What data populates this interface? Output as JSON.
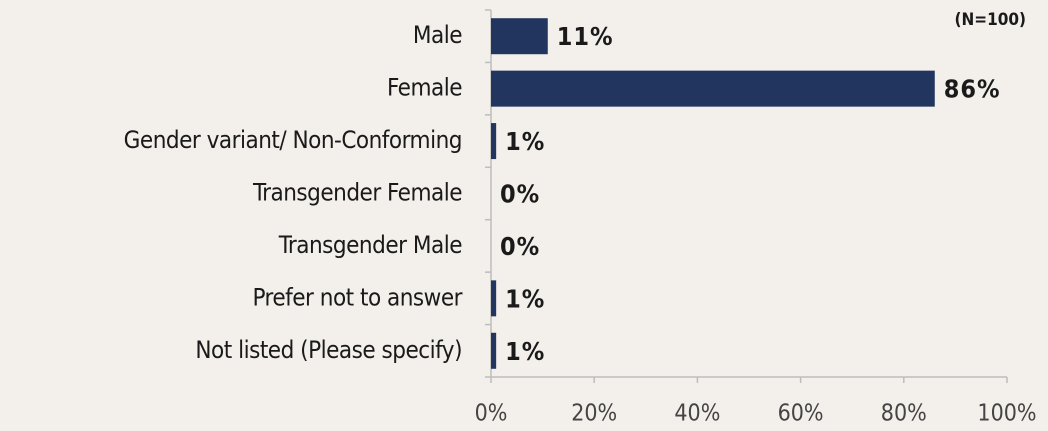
{
  "chart_data": {
    "type": "bar",
    "orientation": "horizontal",
    "annotation": "(N=100)",
    "categories": [
      "Male",
      "Female",
      "Gender variant/ Non-Conforming",
      "Transgender Female",
      "Transgender Male",
      "Prefer not to answer",
      "Not listed (Please specify)"
    ],
    "values": [
      11,
      86,
      1,
      0,
      0,
      1,
      1
    ],
    "value_labels": [
      "11%",
      "86%",
      "1%",
      "0%",
      "0%",
      "1%",
      "1%"
    ],
    "color": "#21355e",
    "xlim": [
      0,
      100
    ],
    "xticks": [
      {
        "value": 0,
        "label": "0%"
      },
      {
        "value": 20,
        "label": "20%"
      },
      {
        "value": 40,
        "label": "40%"
      },
      {
        "value": 60,
        "label": "60%"
      },
      {
        "value": 80,
        "label": "80%"
      },
      {
        "value": 100,
        "label": "100%"
      }
    ]
  }
}
